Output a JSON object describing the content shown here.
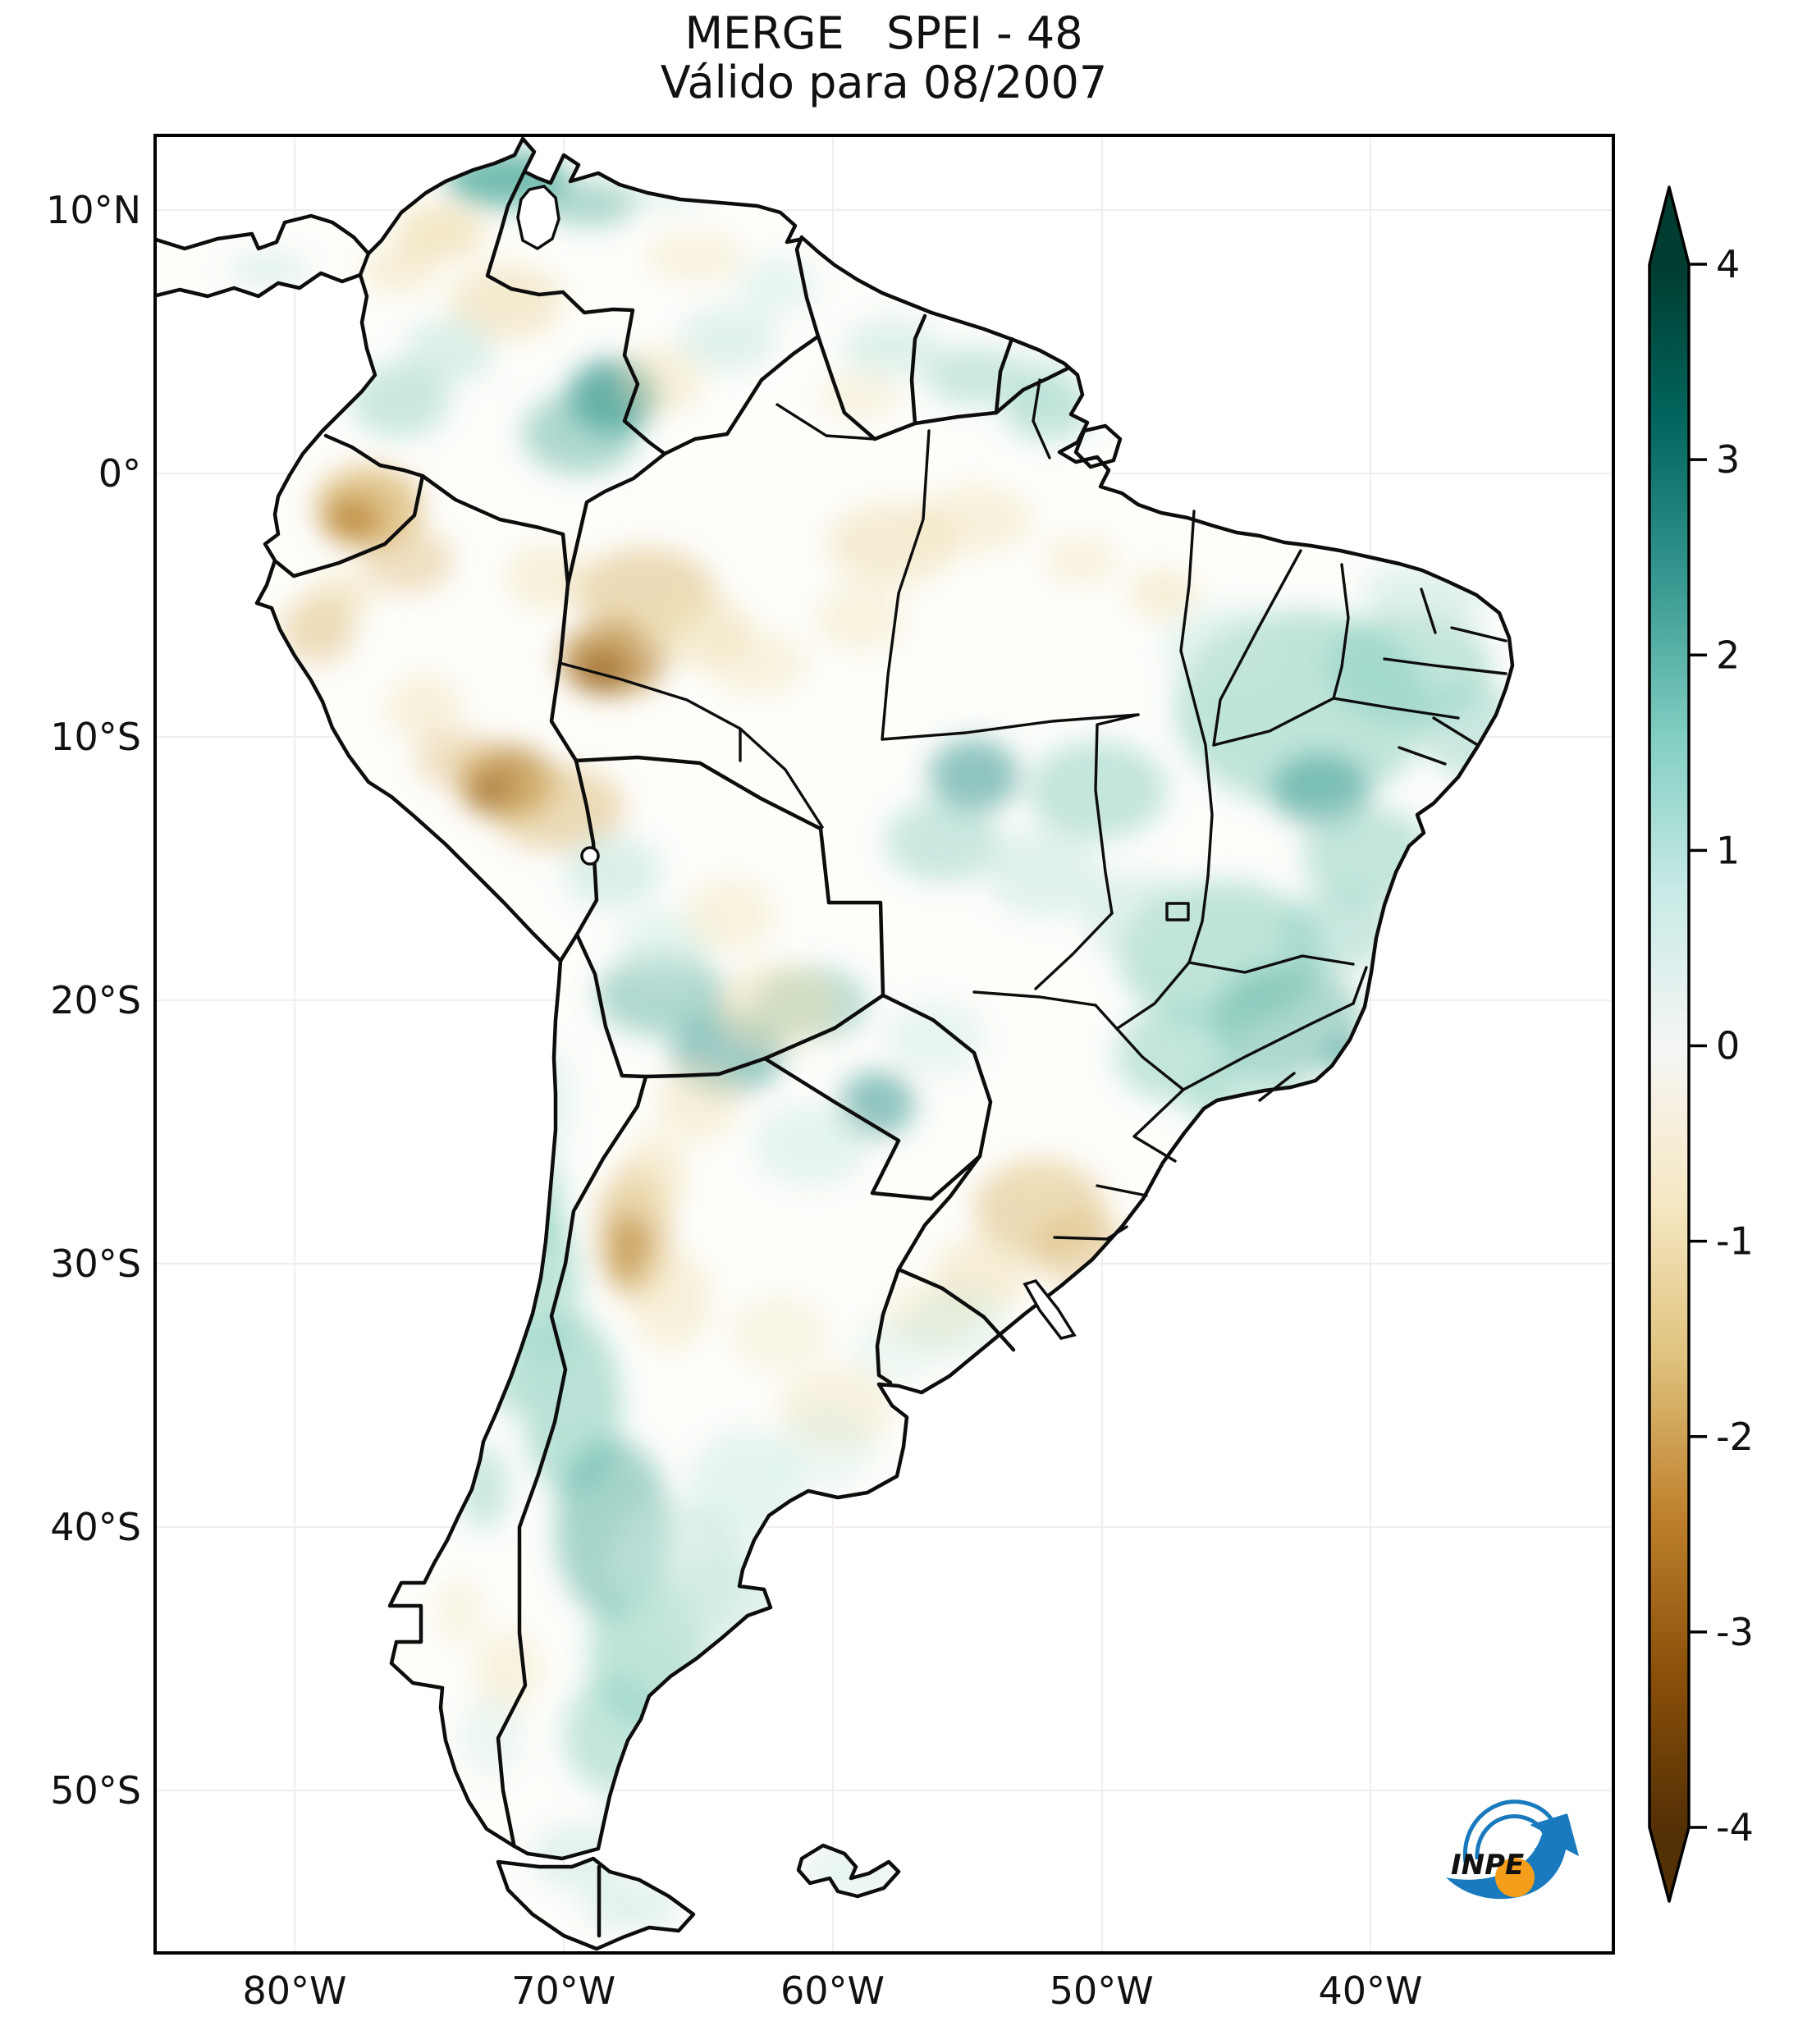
{
  "title": {
    "line1": "MERGE   SPEI - 48",
    "line2": "Válido para 08/2007"
  },
  "axes": {
    "lat_ticks": [
      "10°N",
      "0°",
      "10°S",
      "20°S",
      "30°S",
      "40°S",
      "50°S"
    ],
    "lon_ticks": [
      "80°W",
      "70°W",
      "60°W",
      "50°W",
      "40°W"
    ]
  },
  "colorbar": {
    "ticks": [
      "4",
      "3",
      "2",
      "1",
      "0",
      "-1",
      "-2",
      "-3",
      "-4"
    ],
    "value_range": [
      -4,
      4
    ],
    "colormap_name": "BrBG (brown-white-teal)",
    "stops": [
      {
        "p": 0.0,
        "c": "#003c30"
      },
      {
        "p": 0.1,
        "c": "#01665e"
      },
      {
        "p": 0.2,
        "c": "#35978f"
      },
      {
        "p": 0.3,
        "c": "#80cdc1"
      },
      {
        "p": 0.4,
        "c": "#c7eae5"
      },
      {
        "p": 0.5,
        "c": "#f5f5f5"
      },
      {
        "p": 0.6,
        "c": "#f6e8c3"
      },
      {
        "p": 0.7,
        "c": "#dfc27d"
      },
      {
        "p": 0.8,
        "c": "#bf812d"
      },
      {
        "p": 0.9,
        "c": "#8c510a"
      },
      {
        "p": 1.0,
        "c": "#543005"
      }
    ]
  },
  "map": {
    "land_fill": "#fdfdfa",
    "border_color": "#0d0d0d",
    "palette": {
      "t2": "#35978f",
      "t1": "#5fb3a4",
      "t0": "#8ccfc0",
      "t00": "#c7e8df",
      "b0": "#efe0b4",
      "b1": "#ddbd7e",
      "b2": "#b98632",
      "b3": "#8a5410"
    },
    "field_blobs": [
      [
        430,
        55,
        75,
        35,
        "t1",
        0.85
      ],
      [
        530,
        85,
        60,
        28,
        "t1",
        0.5
      ],
      [
        620,
        70,
        60,
        22,
        "t00",
        0.4
      ],
      [
        350,
        120,
        55,
        35,
        "b0",
        0.7
      ],
      [
        300,
        165,
        45,
        30,
        "b0",
        0.5
      ],
      [
        430,
        205,
        70,
        45,
        "b0",
        0.6
      ],
      [
        660,
        150,
        60,
        30,
        "b0",
        0.4
      ],
      [
        140,
        165,
        50,
        20,
        "t00",
        0.5
      ],
      [
        360,
        265,
        55,
        40,
        "t00",
        0.6
      ],
      [
        300,
        325,
        60,
        45,
        "t0",
        0.45
      ],
      [
        560,
        320,
        55,
        45,
        "t2",
        0.75
      ],
      [
        520,
        365,
        70,
        50,
        "t1",
        0.5
      ],
      [
        620,
        300,
        50,
        40,
        "b0",
        0.45
      ],
      [
        700,
        250,
        60,
        40,
        "t00",
        0.5
      ],
      [
        760,
        185,
        50,
        35,
        "t00",
        0.4
      ],
      [
        900,
        260,
        60,
        35,
        "t00",
        0.55
      ],
      [
        1000,
        295,
        60,
        35,
        "t0",
        0.45
      ],
      [
        1075,
        295,
        50,
        30,
        "t00",
        0.5
      ],
      [
        1090,
        335,
        55,
        40,
        "t0",
        0.5
      ],
      [
        860,
        320,
        50,
        30,
        "b0",
        0.35
      ],
      [
        262,
        455,
        65,
        50,
        "b1",
        0.85
      ],
      [
        243,
        470,
        35,
        28,
        "b2",
        0.75
      ],
      [
        310,
        520,
        55,
        40,
        "b1",
        0.45
      ],
      [
        230,
        562,
        40,
        30,
        "b0",
        0.55
      ],
      [
        200,
        605,
        45,
        40,
        "b1",
        0.5
      ],
      [
        600,
        560,
        85,
        55,
        "b1",
        0.55
      ],
      [
        560,
        640,
        65,
        45,
        "b2",
        0.7
      ],
      [
        545,
        655,
        35,
        25,
        "b3",
        0.55
      ],
      [
        660,
        605,
        70,
        45,
        "b0",
        0.55
      ],
      [
        735,
        645,
        60,
        40,
        "b0",
        0.4
      ],
      [
        480,
        540,
        50,
        40,
        "b0",
        0.45
      ],
      [
        430,
        790,
        60,
        45,
        "b2",
        0.75
      ],
      [
        422,
        802,
        32,
        24,
        "b3",
        0.6
      ],
      [
        492,
        822,
        82,
        52,
        "b1",
        0.55
      ],
      [
        370,
        762,
        50,
        35,
        "b1",
        0.45
      ],
      [
        330,
        700,
        45,
        40,
        "b0",
        0.45
      ],
      [
        900,
        500,
        80,
        50,
        "b0",
        0.55
      ],
      [
        1000,
        470,
        70,
        40,
        "b0",
        0.45
      ],
      [
        862,
        590,
        55,
        40,
        "b0",
        0.4
      ],
      [
        1230,
        560,
        42,
        30,
        "b0",
        0.5
      ],
      [
        1130,
        520,
        45,
        30,
        "b0",
        0.4
      ],
      [
        1150,
        800,
        85,
        60,
        "t0",
        0.5
      ],
      [
        1000,
        782,
        55,
        45,
        "t2",
        0.55
      ],
      [
        962,
        862,
        70,
        50,
        "t0",
        0.45
      ],
      [
        1085,
        900,
        72,
        55,
        "t00",
        0.5
      ],
      [
        1400,
        700,
        155,
        120,
        "t0",
        0.55
      ],
      [
        1530,
        650,
        100,
        70,
        "t0",
        0.5
      ],
      [
        1422,
        800,
        60,
        45,
        "t2",
        0.5
      ],
      [
        1552,
        560,
        80,
        40,
        "t00",
        0.5
      ],
      [
        1300,
        625,
        70,
        50,
        "t00",
        0.45
      ],
      [
        1605,
        725,
        60,
        60,
        "t0",
        0.45
      ],
      [
        1480,
        880,
        80,
        60,
        "t0",
        0.5
      ],
      [
        1300,
        1000,
        125,
        90,
        "t0",
        0.55
      ],
      [
        1382,
        1082,
        92,
        70,
        "t1",
        0.5
      ],
      [
        1252,
        1122,
        80,
        60,
        "t0",
        0.5
      ],
      [
        1442,
        972,
        70,
        50,
        "t0",
        0.45
      ],
      [
        1200,
        952,
        70,
        55,
        "t00",
        0.5
      ],
      [
        1332,
        1182,
        70,
        50,
        "t0",
        0.4
      ],
      [
        1452,
        1122,
        26,
        20,
        "t2",
        0.5
      ],
      [
        882,
        1182,
        46,
        40,
        "t2",
        0.55
      ],
      [
        802,
        1232,
        70,
        50,
        "t00",
        0.45
      ],
      [
        952,
        1102,
        60,
        45,
        "t00",
        0.4
      ],
      [
        700,
        1120,
        70,
        50,
        "t2",
        0.5
      ],
      [
        620,
        1050,
        80,
        50,
        "t1",
        0.5
      ],
      [
        800,
        1060,
        70,
        45,
        "t1",
        0.45
      ],
      [
        560,
        900,
        60,
        45,
        "t00",
        0.6
      ],
      [
        622,
        992,
        55,
        45,
        "t00",
        0.45
      ],
      [
        702,
        952,
        55,
        45,
        "b0",
        0.4
      ],
      [
        762,
        1062,
        72,
        50,
        "b0",
        0.5
      ],
      [
        585,
        1340,
        45,
        80,
        "b1",
        0.65
      ],
      [
        580,
        1360,
        25,
        45,
        "b2",
        0.6
      ],
      [
        610,
        1270,
        40,
        50,
        "b0",
        0.5
      ],
      [
        630,
        1420,
        50,
        60,
        "b0",
        0.45
      ],
      [
        662,
        1182,
        50,
        45,
        "b0",
        0.45
      ],
      [
        1080,
        1310,
        80,
        60,
        "b1",
        0.55
      ],
      [
        1130,
        1360,
        60,
        45,
        "b1",
        0.5
      ],
      [
        1010,
        1390,
        60,
        45,
        "b0",
        0.5
      ],
      [
        950,
        1440,
        60,
        40,
        "b0",
        0.4
      ],
      [
        1082,
        1282,
        40,
        30,
        "b0",
        0.45
      ],
      [
        832,
        1552,
        70,
        50,
        "b0",
        0.4
      ],
      [
        762,
        1462,
        60,
        45,
        "b0",
        0.3
      ],
      [
        902,
        1482,
        50,
        40,
        "t00",
        0.3
      ],
      [
        982,
        1452,
        60,
        45,
        "t00",
        0.35
      ],
      [
        470,
        1400,
        50,
        90,
        "t0",
        0.55
      ],
      [
        510,
        1550,
        60,
        110,
        "t0",
        0.6
      ],
      [
        560,
        1700,
        70,
        110,
        "t1",
        0.55
      ],
      [
        600,
        1850,
        70,
        90,
        "t0",
        0.55
      ],
      [
        640,
        1750,
        80,
        80,
        "t00",
        0.55
      ],
      [
        700,
        1800,
        80,
        70,
        "t00",
        0.5
      ],
      [
        720,
        1650,
        70,
        70,
        "t00",
        0.45
      ],
      [
        820,
        1600,
        60,
        50,
        "t00",
        0.3
      ],
      [
        560,
        1950,
        60,
        70,
        "t0",
        0.5
      ],
      [
        622,
        2030,
        70,
        60,
        "t00",
        0.55
      ],
      [
        520,
        2100,
        60,
        40,
        "t00",
        0.5
      ],
      [
        462,
        1300,
        40,
        60,
        "t0",
        0.5
      ],
      [
        482,
        1180,
        30,
        70,
        "t00",
        0.4
      ],
      [
        432,
        1500,
        30,
        60,
        "t0",
        0.5
      ],
      [
        402,
        1650,
        30,
        50,
        "t0",
        0.45
      ],
      [
        372,
        1800,
        30,
        40,
        "b0",
        0.3
      ],
      [
        432,
        1872,
        40,
        50,
        "b0",
        0.4
      ],
      [
        412,
        1952,
        40,
        50,
        "t00",
        0.3
      ],
      [
        582,
        2160,
        60,
        30,
        "t00",
        0.5
      ],
      [
        850,
        2118,
        60,
        30,
        "t00",
        0.4
      ]
    ]
  },
  "logo": {
    "text": "INPE",
    "blue": "#1a7abe",
    "orange": "#f59e1b"
  }
}
